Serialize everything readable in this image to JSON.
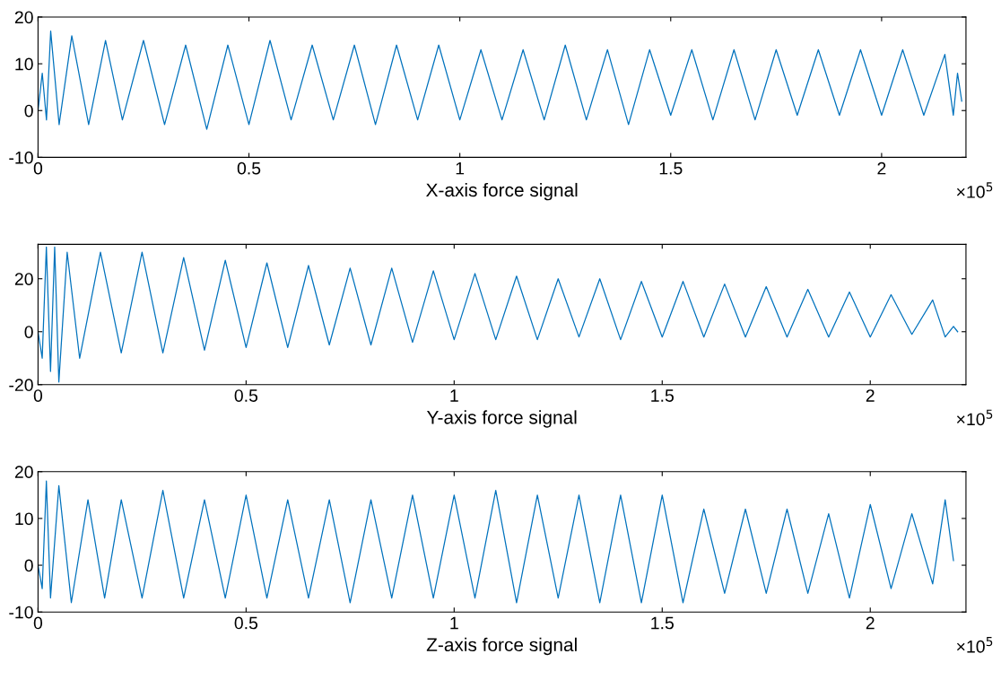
{
  "chart_data": [
    {
      "type": "line",
      "xlabel": "X-axis force signal",
      "annotations": [
        "×10$^{5}$"
      ],
      "xlim": [
        0,
        2.2
      ],
      "ylim": [
        -10,
        20
      ],
      "yticks": [
        -10,
        0,
        10,
        20
      ],
      "xticks": [
        0,
        0.5,
        1,
        1.5,
        2
      ],
      "grid": false,
      "legend": false,
      "series": [
        {
          "color": "#0072bd",
          "x": [
            0,
            0.01,
            0.02,
            0.03,
            0.05,
            0.08,
            0.12,
            0.16,
            0.2,
            0.25,
            0.3,
            0.35,
            0.4,
            0.45,
            0.5,
            0.55,
            0.6,
            0.65,
            0.7,
            0.75,
            0.8,
            0.85,
            0.9,
            0.95,
            1.0,
            1.05,
            1.1,
            1.15,
            1.2,
            1.25,
            1.3,
            1.35,
            1.4,
            1.45,
            1.5,
            1.55,
            1.6,
            1.65,
            1.7,
            1.75,
            1.8,
            1.85,
            1.9,
            1.95,
            2.0,
            2.05,
            2.1,
            2.15,
            2.17,
            2.18,
            2.19
          ],
          "values": [
            0,
            8,
            -2,
            17,
            -3,
            16,
            -3,
            15,
            -2,
            15,
            -3,
            14,
            -4,
            14,
            -3,
            15,
            -2,
            14,
            -2,
            14,
            -3,
            14,
            -2,
            14,
            -2,
            13,
            -2,
            13,
            -2,
            14,
            -2,
            13,
            -3,
            13,
            -1,
            13,
            -2,
            13,
            -2,
            13,
            -1,
            13,
            -1,
            13,
            -1,
            13,
            -1,
            12,
            -1,
            8,
            2
          ]
        }
      ]
    },
    {
      "type": "line",
      "xlabel": "Y-axis force signal",
      "annotations": [
        "×10$^{5}$"
      ],
      "xlim": [
        0,
        2.23
      ],
      "ylim": [
        -20,
        33
      ],
      "yticks": [
        -20,
        0,
        20
      ],
      "xticks": [
        0,
        0.5,
        1,
        1.5,
        2
      ],
      "grid": false,
      "legend": false,
      "series": [
        {
          "color": "#0072bd",
          "x": [
            0,
            0.01,
            0.02,
            0.03,
            0.04,
            0.05,
            0.07,
            0.1,
            0.15,
            0.2,
            0.25,
            0.3,
            0.35,
            0.4,
            0.45,
            0.5,
            0.55,
            0.6,
            0.65,
            0.7,
            0.75,
            0.8,
            0.85,
            0.9,
            0.95,
            1.0,
            1.05,
            1.1,
            1.15,
            1.2,
            1.25,
            1.3,
            1.35,
            1.4,
            1.45,
            1.5,
            1.55,
            1.6,
            1.65,
            1.7,
            1.75,
            1.8,
            1.85,
            1.9,
            1.95,
            2.0,
            2.05,
            2.1,
            2.15,
            2.18,
            2.2,
            2.21
          ],
          "values": [
            0,
            -10,
            32,
            -15,
            32,
            -19,
            30,
            -10,
            30,
            -8,
            30,
            -8,
            28,
            -7,
            27,
            -6,
            26,
            -6,
            25,
            -5,
            24,
            -5,
            24,
            -4,
            23,
            -3,
            22,
            -3,
            21,
            -3,
            20,
            -2,
            20,
            -3,
            19,
            -2,
            19,
            -2,
            18,
            -2,
            17,
            -2,
            16,
            -2,
            15,
            -2,
            14,
            -1,
            12,
            -2,
            2,
            0
          ]
        }
      ]
    },
    {
      "type": "line",
      "xlabel": "Z-axis force signal",
      "annotations": [
        "×10$^{5}$"
      ],
      "xlim": [
        0,
        2.23
      ],
      "ylim": [
        -10,
        20
      ],
      "yticks": [
        -10,
        0,
        10,
        20
      ],
      "xticks": [
        0,
        0.5,
        1,
        1.5,
        2
      ],
      "grid": false,
      "legend": false,
      "series": [
        {
          "color": "#0072bd",
          "x": [
            0,
            0.01,
            0.02,
            0.03,
            0.05,
            0.08,
            0.12,
            0.16,
            0.2,
            0.25,
            0.3,
            0.35,
            0.4,
            0.45,
            0.5,
            0.55,
            0.6,
            0.65,
            0.7,
            0.75,
            0.8,
            0.85,
            0.9,
            0.95,
            1.0,
            1.05,
            1.1,
            1.15,
            1.2,
            1.25,
            1.3,
            1.35,
            1.4,
            1.45,
            1.5,
            1.55,
            1.6,
            1.65,
            1.7,
            1.75,
            1.8,
            1.85,
            1.9,
            1.95,
            2.0,
            2.05,
            2.1,
            2.15,
            2.18,
            2.2
          ],
          "values": [
            0,
            -5,
            18,
            -7,
            17,
            -8,
            14,
            -7,
            14,
            -7,
            16,
            -7,
            14,
            -7,
            15,
            -7,
            14,
            -7,
            14,
            -8,
            14,
            -7,
            15,
            -7,
            15,
            -7,
            16,
            -8,
            15,
            -7,
            15,
            -8,
            15,
            -8,
            15,
            -8,
            12,
            -6,
            12,
            -6,
            12,
            -6,
            11,
            -7,
            13,
            -5,
            11,
            -4,
            14,
            1
          ]
        }
      ]
    }
  ]
}
